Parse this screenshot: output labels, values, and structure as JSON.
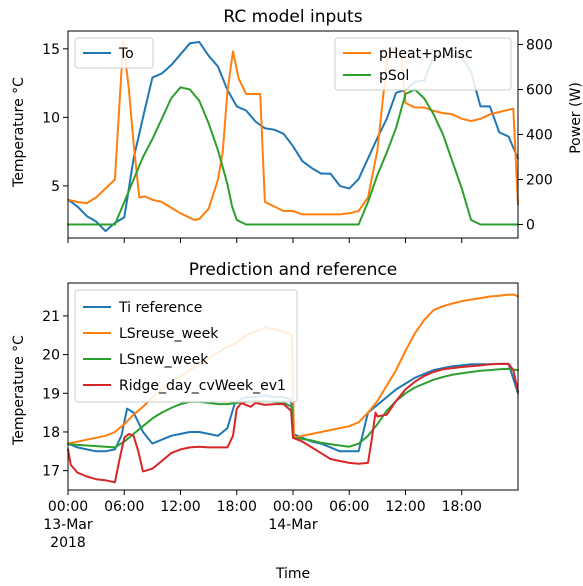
{
  "figure": {
    "xlabel": "Time"
  },
  "chart_data": [
    {
      "type": "line",
      "title": "RC model inputs",
      "ylabel": "Temperature °C",
      "y2label": "Power (W)",
      "ylim": [
        1.2,
        16.3
      ],
      "y2lim": [
        -60,
        860
      ],
      "xlim": [
        0,
        48
      ],
      "yticks": [
        5,
        10,
        15
      ],
      "y2ticks": [
        0,
        200,
        400,
        600,
        800
      ],
      "legend_left": "upper-left",
      "legend_right": "upper-right",
      "series": [
        {
          "name": "To",
          "axis": "left",
          "color": "#1f77b4",
          "x": [
            0,
            1,
            2,
            3,
            4,
            5,
            6,
            7,
            8,
            9,
            10,
            11,
            12,
            13,
            14,
            15,
            16,
            17,
            18,
            19,
            20,
            21,
            22,
            23,
            24,
            25,
            26,
            27,
            28,
            29,
            30,
            31,
            32,
            33,
            34,
            35,
            36,
            37,
            38,
            39,
            40,
            41,
            42,
            43,
            44,
            45,
            46,
            47,
            48
          ],
          "y": [
            4.0,
            3.5,
            2.8,
            2.4,
            1.7,
            2.3,
            2.7,
            7.0,
            10.0,
            12.9,
            13.2,
            13.8,
            14.6,
            15.4,
            15.5,
            14.5,
            13.7,
            12.0,
            10.8,
            10.5,
            9.7,
            9.2,
            9.1,
            8.8,
            7.9,
            6.8,
            6.3,
            5.9,
            5.9,
            5.0,
            4.8,
            5.5,
            7.0,
            8.5,
            9.9,
            11.8,
            12.0,
            12.6,
            12.7,
            14.5,
            14.5,
            14.5,
            14.4,
            13.3,
            10.8,
            10.8,
            8.9,
            8.6,
            7.0
          ]
        },
        {
          "name": "pHeat+pMisc",
          "axis": "right",
          "color": "#ff7f0e",
          "x": [
            0,
            1,
            2,
            3,
            4,
            5,
            5.9,
            6.5,
            7.0,
            7.6,
            8.2,
            9,
            10,
            11,
            12,
            13,
            13.5,
            14,
            15,
            16,
            16.5,
            17,
            17.6,
            18.2,
            19,
            20,
            20.5,
            21,
            22,
            23,
            24,
            25,
            26,
            27,
            28,
            29,
            30,
            31,
            32,
            33,
            34,
            34.8,
            35.5,
            36,
            37,
            38,
            39,
            40,
            41,
            42,
            43,
            44,
            45,
            46,
            47,
            47.5,
            48
          ],
          "y": [
            110,
            100,
            95,
            120,
            160,
            200,
            815,
            600,
            360,
            120,
            125,
            110,
            100,
            75,
            50,
            30,
            20,
            25,
            70,
            200,
            320,
            590,
            770,
            650,
            580,
            580,
            580,
            100,
            80,
            60,
            60,
            45,
            45,
            45,
            45,
            45,
            50,
            60,
            120,
            330,
            720,
            790,
            770,
            540,
            520,
            520,
            505,
            495,
            490,
            470,
            460,
            470,
            490,
            500,
            510,
            515,
            90
          ]
        },
        {
          "name": "pSol",
          "axis": "right",
          "color": "#2ca02c",
          "x": [
            0,
            1,
            2,
            3,
            4,
            5,
            6,
            7,
            8,
            9,
            10,
            11,
            12,
            13,
            14,
            15,
            16,
            17,
            17.5,
            18,
            19,
            20,
            21,
            22,
            23,
            24,
            25,
            26,
            27,
            28,
            29,
            30,
            31,
            32,
            33,
            34,
            35,
            36,
            37,
            38,
            39,
            40,
            41,
            42,
            43,
            44,
            45,
            46,
            47,
            48
          ],
          "y": [
            0,
            0,
            0,
            0,
            0,
            0,
            100,
            200,
            300,
            380,
            470,
            560,
            610,
            600,
            550,
            450,
            330,
            180,
            80,
            20,
            0,
            0,
            0,
            0,
            0,
            0,
            0,
            0,
            0,
            0,
            0,
            0,
            0,
            100,
            220,
            320,
            430,
            580,
            600,
            560,
            490,
            400,
            280,
            160,
            20,
            0,
            0,
            0,
            0,
            0
          ]
        }
      ]
    },
    {
      "type": "line",
      "title": "Prediction and reference",
      "ylabel": "Temperature °C",
      "ylim": [
        16.5,
        21.85
      ],
      "xlim": [
        0,
        48
      ],
      "yticks": [
        17,
        18,
        19,
        20,
        21
      ],
      "xticks": [
        0,
        6,
        12,
        18,
        24,
        30,
        36,
        42
      ],
      "xticklabels": [
        [
          "00:00",
          "13-Mar",
          "2018"
        ],
        [
          "06:00"
        ],
        [
          "12:00"
        ],
        [
          "18:00"
        ],
        [
          "00:00",
          "14-Mar"
        ],
        [
          "06:00"
        ],
        [
          "12:00"
        ],
        [
          "18:00"
        ]
      ],
      "legend": "upper-left",
      "series": [
        {
          "name": "Ti reference",
          "color": "#1f77b4",
          "x": [
            0,
            1,
            2,
            3,
            4,
            5,
            5.7,
            6.3,
            7,
            8,
            9,
            10,
            11,
            12,
            13,
            14,
            15,
            16,
            17,
            17.8,
            18.5,
            19,
            20,
            21,
            22,
            23,
            23.8,
            24,
            25,
            26,
            27,
            28,
            29,
            30,
            31,
            32,
            33,
            34,
            35,
            36,
            37,
            38,
            39,
            40,
            41,
            42,
            43,
            44,
            45,
            46,
            47,
            48
          ],
          "y": [
            17.7,
            17.6,
            17.55,
            17.5,
            17.5,
            17.55,
            17.9,
            18.6,
            18.5,
            18.0,
            17.7,
            17.8,
            17.9,
            17.95,
            18.0,
            18.0,
            17.95,
            17.9,
            18.1,
            18.75,
            18.85,
            18.9,
            18.9,
            18.95,
            18.9,
            18.9,
            18.85,
            17.95,
            17.85,
            17.75,
            17.7,
            17.6,
            17.5,
            17.5,
            17.5,
            18.5,
            18.7,
            18.9,
            19.1,
            19.25,
            19.4,
            19.5,
            19.6,
            19.65,
            19.7,
            19.72,
            19.75,
            19.75,
            19.75,
            19.76,
            19.76,
            19.0
          ]
        },
        {
          "name": "LSreuse_week",
          "color": "#ff7f0e",
          "x": [
            0,
            2,
            4,
            5,
            6,
            7,
            8,
            9,
            10,
            11,
            12,
            13,
            14,
            15,
            16,
            17,
            18,
            18.5,
            19,
            20,
            21,
            22,
            23,
            23.9,
            24.1,
            25,
            26,
            27,
            28,
            29,
            30,
            31,
            32,
            33,
            34,
            35,
            36,
            37,
            38,
            39,
            40,
            41,
            42,
            43,
            44,
            45,
            46,
            47,
            47.6,
            48
          ],
          "y": [
            17.7,
            17.8,
            17.9,
            18.0,
            18.2,
            18.45,
            18.65,
            18.9,
            19.1,
            19.3,
            19.45,
            19.6,
            19.75,
            19.9,
            20.05,
            20.2,
            20.3,
            20.4,
            20.5,
            20.6,
            20.7,
            20.65,
            20.6,
            20.5,
            17.85,
            17.9,
            17.95,
            18.0,
            18.05,
            18.1,
            18.15,
            18.25,
            18.5,
            18.8,
            19.2,
            19.6,
            20.1,
            20.55,
            20.9,
            21.15,
            21.25,
            21.32,
            21.38,
            21.42,
            21.46,
            21.5,
            21.52,
            21.55,
            21.55,
            21.5
          ]
        },
        {
          "name": "LSnew_week",
          "color": "#2ca02c",
          "x": [
            0,
            2,
            4,
            5,
            6,
            7,
            8,
            9,
            10,
            11,
            12,
            13,
            14,
            15,
            16,
            17,
            18,
            19,
            20,
            21,
            22,
            23,
            23.9,
            24,
            25,
            26,
            27,
            28,
            29,
            30,
            31,
            32,
            33,
            34,
            35,
            36,
            37,
            38,
            39,
            40,
            41,
            42,
            43,
            44,
            45,
            46,
            47,
            48
          ],
          "y": [
            17.68,
            17.65,
            17.62,
            17.6,
            17.75,
            17.95,
            18.15,
            18.35,
            18.5,
            18.62,
            18.72,
            18.78,
            18.78,
            18.75,
            18.72,
            18.72,
            18.75,
            18.78,
            18.8,
            18.8,
            18.78,
            18.75,
            18.65,
            17.85,
            17.82,
            17.78,
            17.72,
            17.68,
            17.65,
            17.62,
            17.7,
            17.9,
            18.2,
            18.55,
            18.8,
            19.0,
            19.15,
            19.25,
            19.35,
            19.42,
            19.48,
            19.52,
            19.55,
            19.58,
            19.6,
            19.62,
            19.63,
            19.6
          ]
        },
        {
          "name": "Ridge_day_cvWeek_ev1",
          "color": "#d62728",
          "x": [
            0,
            0.3,
            1,
            2,
            3,
            4,
            5,
            5.5,
            6,
            6.5,
            7,
            7.5,
            8,
            9,
            10,
            11,
            12,
            13,
            14,
            15,
            16,
            17,
            17.6,
            18,
            18.5,
            19,
            19.5,
            20,
            21,
            22,
            23,
            23.8,
            24,
            25,
            26,
            27,
            28,
            29,
            30,
            31,
            32,
            32.4,
            32.8,
            33,
            34,
            35,
            36,
            37,
            38,
            39,
            40,
            41,
            42,
            43,
            44,
            45,
            46,
            47,
            47.5,
            48
          ],
          "y": [
            17.55,
            17.15,
            16.95,
            16.85,
            16.78,
            16.75,
            16.7,
            17.3,
            17.85,
            17.95,
            17.9,
            17.5,
            16.98,
            17.05,
            17.25,
            17.45,
            17.55,
            17.6,
            17.62,
            17.6,
            17.6,
            17.6,
            17.9,
            18.6,
            18.75,
            18.7,
            18.65,
            18.75,
            18.7,
            18.72,
            18.72,
            18.55,
            17.85,
            17.75,
            17.6,
            17.45,
            17.3,
            17.25,
            17.2,
            17.18,
            17.2,
            17.8,
            18.5,
            18.4,
            18.45,
            18.8,
            19.1,
            19.3,
            19.45,
            19.55,
            19.62,
            19.65,
            19.68,
            19.7,
            19.72,
            19.75,
            19.76,
            19.76,
            19.6,
            19.05
          ]
        }
      ]
    }
  ]
}
